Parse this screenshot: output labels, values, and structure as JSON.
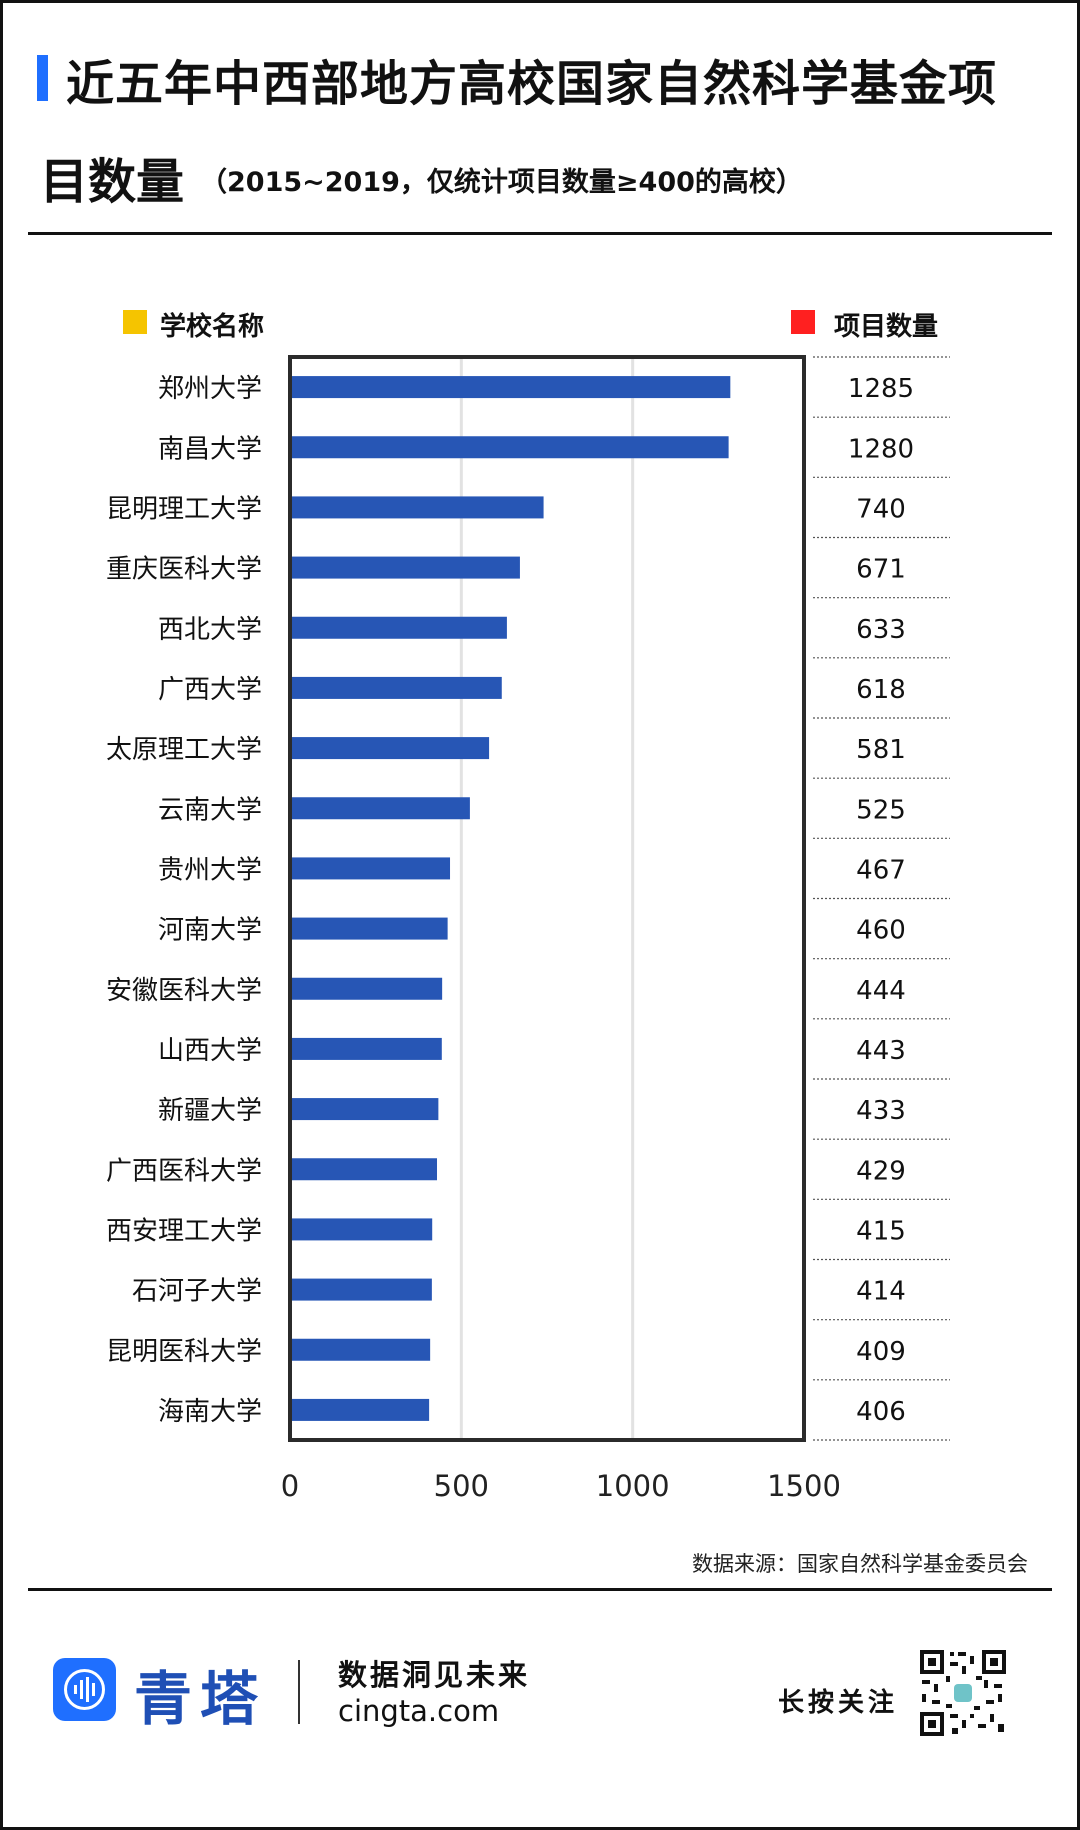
{
  "header": {
    "title_line1": "近五年中西部地方高校国家自然科学基金项",
    "title_line2": "目数量",
    "subtitle": "（2015~2019，仅统计项目数量≥400的高校）"
  },
  "legend": {
    "school_label": "学校名称",
    "count_label": "项目数量",
    "school_color": "#f5c400",
    "count_color": "#ff2020"
  },
  "chart_data": {
    "type": "bar",
    "orientation": "horizontal",
    "categories": [
      "郑州大学",
      "南昌大学",
      "昆明理工大学",
      "重庆医科大学",
      "西北大学",
      "广西大学",
      "太原理工大学",
      "云南大学",
      "贵州大学",
      "河南大学",
      "安徽医科大学",
      "山西大学",
      "新疆大学",
      "广西医科大学",
      "西安理工大学",
      "石河子大学",
      "昆明医科大学",
      "海南大学"
    ],
    "values": [
      1285,
      1280,
      740,
      671,
      633,
      618,
      581,
      525,
      467,
      460,
      444,
      443,
      433,
      429,
      415,
      414,
      409,
      406
    ],
    "value_labels": [
      "1285",
      "1280",
      "740",
      "671",
      "633",
      "618",
      "581",
      "525",
      "467",
      "460",
      "444",
      "443",
      "433",
      "429",
      "415",
      "414",
      "409",
      "406"
    ],
    "xlim": [
      0,
      1500
    ],
    "xticks": [
      0,
      500,
      1000,
      1500
    ],
    "xtick_labels": [
      "0",
      "500",
      "1000",
      "1500"
    ],
    "bar_color": "#2756b5",
    "grid": true
  },
  "footer": {
    "source": "数据来源：国家自然科学基金委员会",
    "brand": "青塔",
    "slogan": "数据洞见未来",
    "domain": "cingta.com",
    "follow": "长按关注"
  }
}
